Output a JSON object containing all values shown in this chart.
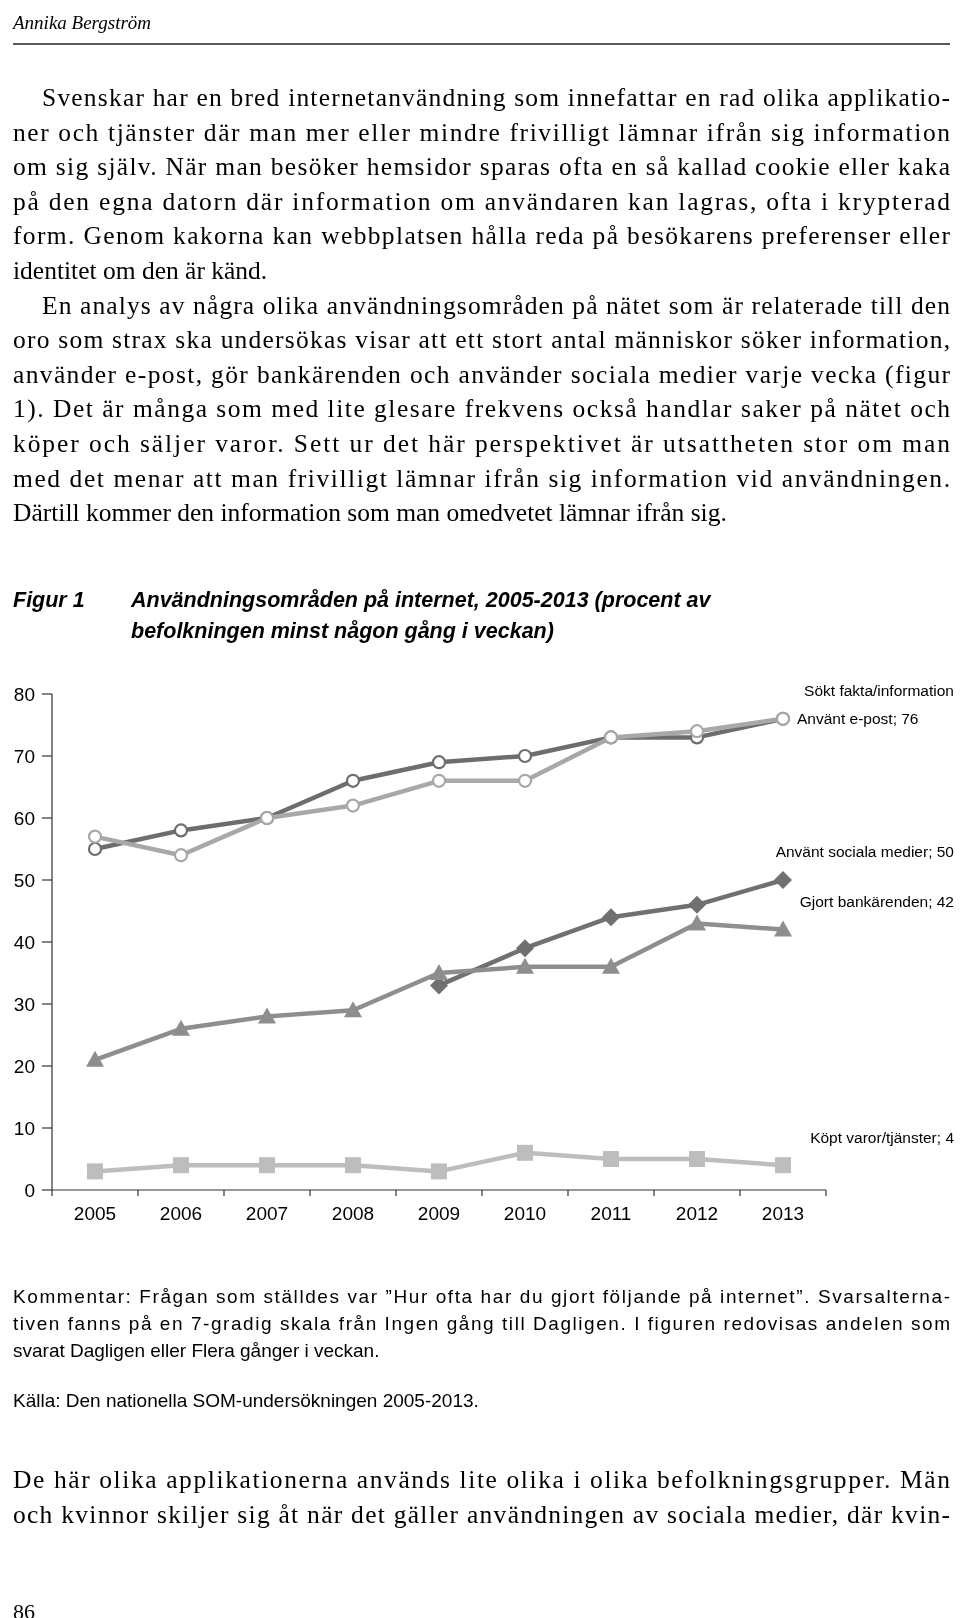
{
  "chart_data": {
    "type": "line",
    "title": "Användningsområden på internet, 2005-2013 (procent av befolkningen minst någon gång i veckan)",
    "categories": [
      "2005",
      "2006",
      "2007",
      "2008",
      "2009",
      "2010",
      "2011",
      "2012",
      "2013"
    ],
    "series": [
      {
        "color": "#6d6d6d",
        "marker": "circle",
        "values": [
          55,
          58,
          60,
          66,
          69,
          70,
          73,
          73,
          76
        ]
      },
      {
        "color": "#a8a8a8",
        "marker": "circle",
        "values": [
          57,
          54,
          60,
          62,
          66,
          66,
          73,
          74,
          76
        ]
      },
      {
        "color": "#707070",
        "marker": "diamond",
        "values": [
          null,
          null,
          null,
          null,
          33,
          39,
          44,
          46,
          50
        ]
      },
      {
        "color": "#8e8e8e",
        "marker": "triangle",
        "values": [
          21,
          26,
          28,
          29,
          35,
          36,
          36,
          43,
          42
        ]
      },
      {
        "color": "#bdbdbd",
        "marker": "square",
        "values": [
          3,
          4,
          4,
          4,
          3,
          6,
          5,
          5,
          4
        ]
      }
    ],
    "ylim": [
      0,
      80
    ],
    "yticks": [
      0,
      10,
      20,
      30,
      40,
      50,
      60,
      70,
      80
    ],
    "grid": false,
    "annotations": [
      "Annika Bergström",
      "Svenskar har en bred internetanvändning som innefattar en rad olika applikatio-",
      "ner och tjänster där man mer eller mindre frivilligt lämnar ifrån sig information",
      "om sig själv. När man besöker hemsidor sparas ofta en så kallad cookie eller kaka",
      "på den egna datorn där information om användaren kan lagras, ofta i krypterad",
      "form. Genom kakorna kan webbplatsen hålla reda på besökarens preferenser eller",
      "identitet om den är känd.",
      "En analys av några olika användningsområden på nätet som är relaterade till den",
      "oro som strax ska undersökas visar att ett stort antal människor söker information,",
      "använder e-post, gör bankärenden och använder sociala medier varje vecka (figur",
      "1). Det är många som med lite glesare frekvens också handlar saker på nätet och",
      "köper och säljer varor. Sett ur det här perspektivet är utsattheten stor om man",
      "med det menar att man frivilligt lämnar ifrån sig information vid användningen.",
      "Därtill kommer den information som man omedvetet lämnar ifrån sig.",
      "Figur 1",
      "Kommentar: Frågan som ställdes var ”Hur ofta har du gjort följande på internet”. Svarsalterna-",
      "tiven fanns på en 7-gradig skala från Ingen gång till Dagligen. I figuren redovisas andelen som",
      "svarat Dagligen eller Flera gånger i veckan.",
      "Källa: Den nationella SOM-undersökningen 2005-2013.",
      "De här olika applikationerna används lite olika i olika befolkningsgrupper. Män",
      "och kvinnor skiljer sig åt när det gäller användningen av sociala medier, där kvin-",
      "86",
      {
        "text": "Sökt fakta/information",
        "x": "2013",
        "y": 76
      },
      {
        "text": "Använt e-post; 76",
        "x": "2013",
        "y": 76
      },
      {
        "text": "Använt sociala medier; 50",
        "x": "2013",
        "y": 50
      },
      {
        "text": "Gjort bankärenden; 42",
        "x": "2013",
        "y": 42
      },
      {
        "text": "Köpt varor/tjänster; 4",
        "x": "2013",
        "y": 4
      }
    ]
  }
}
